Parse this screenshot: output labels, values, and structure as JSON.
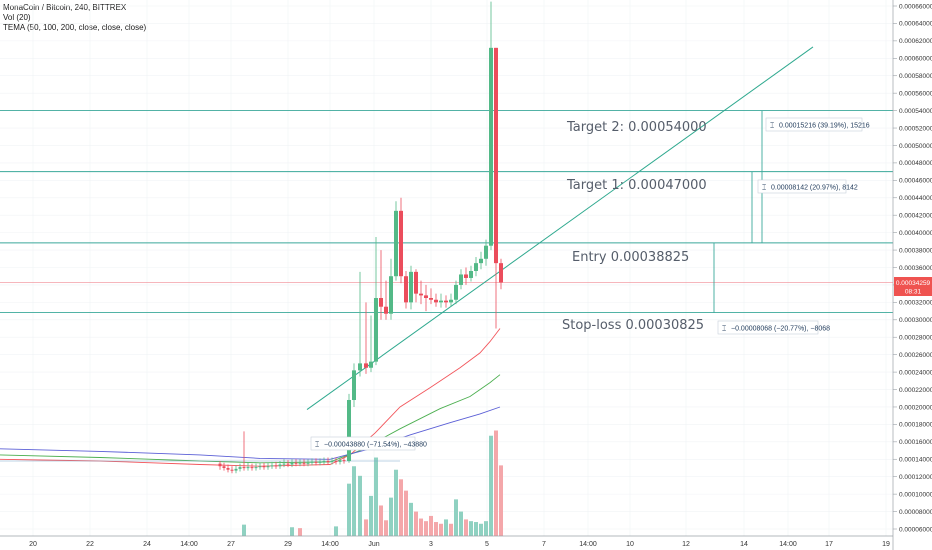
{
  "legend": {
    "symbol": "MonaCoin / Bitcoin, 240, BITTREX",
    "vol": "Vol (20)",
    "tema": "TEMA (50, 100, 200, close, close, close)"
  },
  "colors": {
    "up": "#53b987",
    "down": "#eb4d5c",
    "vol_up": "#8fd1c1",
    "vol_down": "#f4a7aa",
    "level": "#3aa89a",
    "trend": "#2fa98f",
    "tema50": "#f2565c",
    "tema100": "#4caf50",
    "tema200": "#5b5fd6",
    "price_tag": "#ef5350"
  },
  "annotations": {
    "target2": "Target 2:  0.00054000",
    "target1": "Target 1:  0.00047000",
    "entry": "Entry 0.00038825",
    "stop": "Stop-loss 0.00030825"
  },
  "measures": {
    "m1": "0.00015216 (39.19%), 15216",
    "m2": "0.00008142 (20.97%), 8142",
    "m3": "−0.00008068 (−20.77%), −8068",
    "m4": "−0.00043880 (−71.54%), −43880"
  },
  "price_tag": {
    "price": "0.00034259",
    "time": "08:31"
  },
  "chart_data": {
    "type": "candlestick",
    "y_ticks": [
      "0.00066000",
      "0.00064000",
      "0.00062000",
      "0.00060000",
      "0.00058000",
      "0.00056000",
      "0.00054000",
      "0.00052000",
      "0.00050000",
      "0.00048000",
      "0.00046000",
      "0.00044000",
      "0.00042000",
      "0.00040000",
      "0.00038000",
      "0.00036000",
      "0.00034000",
      "0.00032000",
      "0.00030000",
      "0.00028000",
      "0.00026000",
      "0.00024000",
      "0.00022000",
      "0.00020000",
      "0.00018000",
      "0.00016000",
      "0.00014000",
      "0.00012000",
      "0.00010000",
      "0.00008000",
      "0.00006000"
    ],
    "x_ticks": [
      "20",
      "22",
      "24",
      "14:00",
      "27",
      "29",
      "14:00",
      "Jun",
      "3",
      "5",
      "7",
      "14:00",
      "10",
      "12",
      "14",
      "14:00",
      "17",
      "19"
    ],
    "levels": [
      {
        "name": "target2",
        "price": 0.00054
      },
      {
        "name": "target1",
        "price": 0.00047
      },
      {
        "name": "entry",
        "price": 0.00038825
      },
      {
        "name": "stop",
        "price": 0.00030825
      },
      {
        "name": "current",
        "price": 0.00034259
      }
    ],
    "trendline": [
      {
        "x": 307,
        "price": 0.000197
      },
      {
        "x": 813,
        "price": 0.000613
      }
    ],
    "candles": [
      {
        "x": 220,
        "o": 0.000135,
        "c": 0.000132,
        "h": 0.000138,
        "l": 0.000128
      },
      {
        "x": 224,
        "o": 0.000132,
        "c": 0.00013,
        "h": 0.000136,
        "l": 0.000127
      },
      {
        "x": 228,
        "o": 0.00013,
        "c": 0.000128,
        "h": 0.000134,
        "l": 0.000125
      },
      {
        "x": 232,
        "o": 0.000128,
        "c": 0.000127,
        "h": 0.000132,
        "l": 0.000124
      },
      {
        "x": 236,
        "o": 0.000127,
        "c": 0.000129,
        "h": 0.000133,
        "l": 0.000124
      },
      {
        "x": 240,
        "o": 0.000129,
        "c": 0.000131,
        "h": 0.000135,
        "l": 0.000126
      },
      {
        "x": 244,
        "o": 0.000131,
        "c": 0.00013,
        "h": 0.000172,
        "l": 0.000127
      },
      {
        "x": 248,
        "o": 0.00013,
        "c": 0.000131,
        "h": 0.000136,
        "l": 0.000127
      },
      {
        "x": 252,
        "o": 0.000131,
        "c": 0.00013,
        "h": 0.000135,
        "l": 0.000127
      },
      {
        "x": 256,
        "o": 0.00013,
        "c": 0.000131,
        "h": 0.000135,
        "l": 0.000127
      },
      {
        "x": 260,
        "o": 0.000131,
        "c": 0.000132,
        "h": 0.000136,
        "l": 0.000128
      },
      {
        "x": 264,
        "o": 0.000132,
        "c": 0.000131,
        "h": 0.000136,
        "l": 0.000128
      },
      {
        "x": 268,
        "o": 0.000131,
        "c": 0.000132,
        "h": 0.000136,
        "l": 0.000128
      },
      {
        "x": 272,
        "o": 0.000132,
        "c": 0.000133,
        "h": 0.000137,
        "l": 0.000129
      },
      {
        "x": 276,
        "o": 0.000133,
        "c": 0.000132,
        "h": 0.000137,
        "l": 0.000129
      },
      {
        "x": 280,
        "o": 0.000132,
        "c": 0.000134,
        "h": 0.000138,
        "l": 0.000129
      },
      {
        "x": 284,
        "o": 0.000134,
        "c": 0.000135,
        "h": 0.00014,
        "l": 0.000131
      },
      {
        "x": 288,
        "o": 0.000135,
        "c": 0.000134,
        "h": 0.000139,
        "l": 0.000131
      },
      {
        "x": 292,
        "o": 0.000134,
        "c": 0.000136,
        "h": 0.00014,
        "l": 0.000131
      },
      {
        "x": 296,
        "o": 0.000136,
        "c": 0.000135,
        "h": 0.00014,
        "l": 0.000132
      },
      {
        "x": 300,
        "o": 0.000135,
        "c": 0.000136,
        "h": 0.00014,
        "l": 0.000132
      },
      {
        "x": 304,
        "o": 0.000136,
        "c": 0.000135,
        "h": 0.00014,
        "l": 0.000132
      },
      {
        "x": 308,
        "o": 0.000135,
        "c": 0.000136,
        "h": 0.00014,
        "l": 0.000132
      },
      {
        "x": 312,
        "o": 0.000136,
        "c": 0.000137,
        "h": 0.000141,
        "l": 0.000133
      },
      {
        "x": 316,
        "o": 0.000137,
        "c": 0.000136,
        "h": 0.000141,
        "l": 0.000133
      },
      {
        "x": 320,
        "o": 0.000136,
        "c": 0.000137,
        "h": 0.000141,
        "l": 0.000133
      },
      {
        "x": 324,
        "o": 0.000137,
        "c": 0.000138,
        "h": 0.000142,
        "l": 0.000134
      },
      {
        "x": 328,
        "o": 0.000138,
        "c": 0.000137,
        "h": 0.000142,
        "l": 0.000134
      },
      {
        "x": 332,
        "o": 0.000137,
        "c": 0.000138,
        "h": 0.000142,
        "l": 0.000134
      },
      {
        "x": 336,
        "o": 0.000138,
        "c": 0.000137,
        "h": 0.000142,
        "l": 0.000134
      },
      {
        "x": 340,
        "o": 0.000137,
        "c": 0.000139,
        "h": 0.000143,
        "l": 0.000134
      },
      {
        "x": 344,
        "o": 0.000139,
        "c": 0.000138,
        "h": 0.000143,
        "l": 0.000135
      },
      {
        "x": 349,
        "o": 0.000138,
        "c": 0.000208,
        "h": 0.000215,
        "l": 0.000136
      },
      {
        "x": 354,
        "o": 0.000208,
        "c": 0.000242,
        "h": 0.00025,
        "l": 0.0002
      },
      {
        "x": 360,
        "o": 0.000242,
        "c": 0.00025,
        "h": 0.000355,
        "l": 0.000235
      },
      {
        "x": 366,
        "o": 0.00025,
        "c": 0.000245,
        "h": 0.00032,
        "l": 0.000238
      },
      {
        "x": 371,
        "o": 0.000245,
        "c": 0.000252,
        "h": 0.000305,
        "l": 0.00024
      },
      {
        "x": 376,
        "o": 0.000252,
        "c": 0.000325,
        "h": 0.000395,
        "l": 0.000248
      },
      {
        "x": 381,
        "o": 0.000325,
        "c": 0.000315,
        "h": 0.00038,
        "l": 0.0003
      },
      {
        "x": 386,
        "o": 0.000315,
        "c": 0.000307,
        "h": 0.000345,
        "l": 0.0003
      },
      {
        "x": 391,
        "o": 0.000307,
        "c": 0.00035,
        "h": 0.00037,
        "l": 0.0003
      },
      {
        "x": 396,
        "o": 0.00035,
        "c": 0.000425,
        "h": 0.000436,
        "l": 0.000345
      },
      {
        "x": 401,
        "o": 0.000425,
        "c": 0.00035,
        "h": 0.00044,
        "l": 0.000342
      },
      {
        "x": 406,
        "o": 0.00035,
        "c": 0.00032,
        "h": 0.000356,
        "l": 0.000313
      },
      {
        "x": 411,
        "o": 0.00032,
        "c": 0.000355,
        "h": 0.000362,
        "l": 0.000312
      },
      {
        "x": 416,
        "o": 0.000355,
        "c": 0.00033,
        "h": 0.000358,
        "l": 0.00032
      },
      {
        "x": 421,
        "o": 0.00033,
        "c": 0.000328,
        "h": 0.000345,
        "l": 0.000318
      },
      {
        "x": 426,
        "o": 0.000328,
        "c": 0.000325,
        "h": 0.00034,
        "l": 0.00031
      },
      {
        "x": 431,
        "o": 0.000325,
        "c": 0.000323,
        "h": 0.000336,
        "l": 0.000318
      },
      {
        "x": 436,
        "o": 0.000323,
        "c": 0.00032,
        "h": 0.00033,
        "l": 0.000315
      },
      {
        "x": 441,
        "o": 0.00032,
        "c": 0.000322,
        "h": 0.00033,
        "l": 0.000314
      },
      {
        "x": 446,
        "o": 0.000322,
        "c": 0.00032,
        "h": 0.000328,
        "l": 0.000314
      },
      {
        "x": 451,
        "o": 0.00032,
        "c": 0.000323,
        "h": 0.00033,
        "l": 0.000315
      },
      {
        "x": 456,
        "o": 0.000323,
        "c": 0.00034,
        "h": 0.000345,
        "l": 0.000318
      },
      {
        "x": 461,
        "o": 0.00034,
        "c": 0.000352,
        "h": 0.000358,
        "l": 0.000335
      },
      {
        "x": 466,
        "o": 0.000352,
        "c": 0.000348,
        "h": 0.00036,
        "l": 0.00034
      },
      {
        "x": 471,
        "o": 0.000348,
        "c": 0.000356,
        "h": 0.000362,
        "l": 0.000344
      },
      {
        "x": 476,
        "o": 0.000356,
        "c": 0.000365,
        "h": 0.000372,
        "l": 0.00035
      },
      {
        "x": 481,
        "o": 0.000365,
        "c": 0.00037,
        "h": 0.000378,
        "l": 0.000358
      },
      {
        "x": 486,
        "o": 0.00037,
        "c": 0.000385,
        "h": 0.000392,
        "l": 0.000362
      },
      {
        "x": 491,
        "o": 0.000385,
        "c": 0.000612,
        "h": 0.000665,
        "l": 0.00038
      },
      {
        "x": 496,
        "o": 0.000612,
        "c": 0.000365,
        "h": 0.000612,
        "l": 0.00029
      },
      {
        "x": 501,
        "o": 0.000365,
        "c": 0.000343,
        "h": 0.00037,
        "l": 0.000335
      }
    ],
    "volumes": [
      {
        "x": 244,
        "v": 6.5e-05,
        "up": true
      },
      {
        "x": 292,
        "v": 6.2e-05,
        "up": true
      },
      {
        "x": 300,
        "v": 6.1e-05,
        "up": false
      },
      {
        "x": 336,
        "v": 6.3e-05,
        "up": true
      },
      {
        "x": 349,
        "v": 0.000112,
        "up": true
      },
      {
        "x": 354,
        "v": 0.000132,
        "up": true
      },
      {
        "x": 360,
        "v": 0.000121,
        "up": true
      },
      {
        "x": 366,
        "v": 7.1e-05,
        "up": false
      },
      {
        "x": 371,
        "v": 9.8e-05,
        "up": true
      },
      {
        "x": 376,
        "v": 0.000142,
        "up": true
      },
      {
        "x": 381,
        "v": 8.7e-05,
        "up": false
      },
      {
        "x": 386,
        "v": 7e-05,
        "up": false
      },
      {
        "x": 391,
        "v": 9.6e-05,
        "up": true
      },
      {
        "x": 396,
        "v": 0.000128,
        "up": true
      },
      {
        "x": 401,
        "v": 0.000117,
        "up": false
      },
      {
        "x": 406,
        "v": 0.000104,
        "up": false
      },
      {
        "x": 411,
        "v": 9e-05,
        "up": true
      },
      {
        "x": 416,
        "v": 8e-05,
        "up": false
      },
      {
        "x": 421,
        "v": 7.2e-05,
        "up": false
      },
      {
        "x": 426,
        "v": 6.9e-05,
        "up": false
      },
      {
        "x": 431,
        "v": 7.5e-05,
        "up": false
      },
      {
        "x": 436,
        "v": 6.8e-05,
        "up": false
      },
      {
        "x": 441,
        "v": 6.6e-05,
        "up": false
      },
      {
        "x": 446,
        "v": 7.1e-05,
        "up": true
      },
      {
        "x": 451,
        "v": 6.6e-05,
        "up": false
      },
      {
        "x": 456,
        "v": 9.4e-05,
        "up": true
      },
      {
        "x": 461,
        "v": 8e-05,
        "up": true
      },
      {
        "x": 466,
        "v": 7.1e-05,
        "up": false
      },
      {
        "x": 471,
        "v": 6.9e-05,
        "up": true
      },
      {
        "x": 476,
        "v": 6.8e-05,
        "up": true
      },
      {
        "x": 481,
        "v": 6.6e-05,
        "up": true
      },
      {
        "x": 486,
        "v": 6.9e-05,
        "up": true
      },
      {
        "x": 491,
        "v": 0.000167,
        "up": true
      },
      {
        "x": 496,
        "v": 0.000173,
        "up": false
      },
      {
        "x": 501,
        "v": 0.000133,
        "up": false
      }
    ],
    "tema50": [
      [
        0,
        0.00014
      ],
      [
        100,
        0.000138
      ],
      [
        200,
        0.000134
      ],
      [
        260,
        0.000132
      ],
      [
        330,
        0.000134
      ],
      [
        350,
        0.000145
      ],
      [
        375,
        0.00017
      ],
      [
        400,
        0.0002
      ],
      [
        430,
        0.000222
      ],
      [
        460,
        0.000245
      ],
      [
        480,
        0.000262
      ],
      [
        490,
        0.000275
      ],
      [
        500,
        0.00029
      ]
    ],
    "tema100": [
      [
        0,
        0.000145
      ],
      [
        100,
        0.000142
      ],
      [
        200,
        0.000138
      ],
      [
        260,
        0.000136
      ],
      [
        330,
        0.000137
      ],
      [
        360,
        0.00015
      ],
      [
        400,
        0.000175
      ],
      [
        440,
        0.000198
      ],
      [
        470,
        0.000212
      ],
      [
        490,
        0.000228
      ],
      [
        500,
        0.000237
      ]
    ],
    "tema200": [
      [
        0,
        0.000152
      ],
      [
        100,
        0.000149
      ],
      [
        200,
        0.000145
      ],
      [
        260,
        0.000141
      ],
      [
        330,
        0.00014
      ],
      [
        370,
        0.000152
      ],
      [
        410,
        0.000168
      ],
      [
        450,
        0.000182
      ],
      [
        480,
        0.000192
      ],
      [
        500,
        0.0002
      ]
    ]
  }
}
